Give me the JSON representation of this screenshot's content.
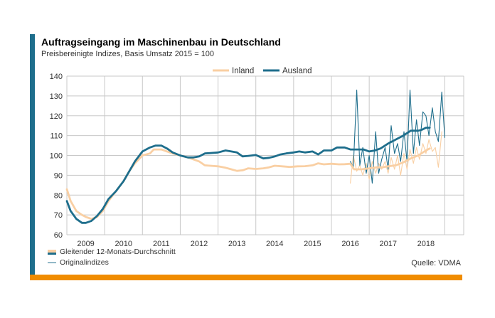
{
  "title": "Auftragseingang im Maschinenbau in Deutschland",
  "subtitle": "Preisbereinigte Indizes, Basis Umsatz 2015 = 100",
  "source": "Quelle: VDMA",
  "legend_bottom": {
    "moving_avg": "Gleitender 12-Monats-Durchschnitt",
    "original": "Originalindizes"
  },
  "colors": {
    "accent": "#1e6e8c",
    "orange": "#f08c00",
    "inland": "#f9cfa3",
    "ausland": "#1e6e8c",
    "grid": "#c8c8c8"
  },
  "chart_data": {
    "type": "line",
    "title": "Auftragseingang im Maschinenbau in Deutschland",
    "subtitle": "Preisbereinigte Indizes, Basis Umsatz 2015 = 100",
    "xlabel": "",
    "ylabel": "",
    "ylim": [
      60,
      140
    ],
    "yticks": [
      60,
      70,
      80,
      90,
      100,
      110,
      120,
      130,
      140
    ],
    "xlim": [
      2008.5,
      2019.0
    ],
    "x_tick_labels": [
      "2009",
      "2010",
      "2011",
      "2012",
      "2013",
      "2014",
      "2015",
      "2016",
      "2017",
      "2018"
    ],
    "grid": true,
    "legend_position": "top",
    "series": [
      {
        "name": "Inland",
        "kind": "moving_average",
        "color": "#f9cfa3",
        "points": [
          [
            2008.5,
            83
          ],
          [
            2008.6,
            77
          ],
          [
            2008.75,
            72
          ],
          [
            2008.9,
            70
          ],
          [
            2009.0,
            69
          ],
          [
            2009.15,
            68
          ],
          [
            2009.3,
            69
          ],
          [
            2009.45,
            72
          ],
          [
            2009.6,
            77
          ],
          [
            2009.8,
            82
          ],
          [
            2010.0,
            87
          ],
          [
            2010.15,
            92
          ],
          [
            2010.3,
            96
          ],
          [
            2010.5,
            100
          ],
          [
            2010.7,
            101
          ],
          [
            2010.8,
            103
          ],
          [
            2011.0,
            103
          ],
          [
            2011.15,
            102
          ],
          [
            2011.3,
            101
          ],
          [
            2011.5,
            100
          ],
          [
            2011.7,
            99
          ],
          [
            2011.85,
            98
          ],
          [
            2012.0,
            97
          ],
          [
            2012.15,
            95
          ],
          [
            2012.3,
            94.8
          ],
          [
            2012.5,
            94.5
          ],
          [
            2012.7,
            93.8
          ],
          [
            2012.85,
            93
          ],
          [
            2013.0,
            92.2
          ],
          [
            2013.15,
            92.5
          ],
          [
            2013.3,
            93.5
          ],
          [
            2013.5,
            93.2
          ],
          [
            2013.7,
            93.5
          ],
          [
            2013.85,
            94
          ],
          [
            2014.0,
            94.8
          ],
          [
            2014.2,
            94.5
          ],
          [
            2014.4,
            94.2
          ],
          [
            2014.6,
            94.5
          ],
          [
            2014.8,
            94.6
          ],
          [
            2015.0,
            95
          ],
          [
            2015.15,
            96
          ],
          [
            2015.3,
            95.5
          ],
          [
            2015.5,
            95.8
          ],
          [
            2015.7,
            95.5
          ],
          [
            2015.85,
            95.6
          ],
          [
            2016.0,
            95.8
          ],
          [
            2016.1,
            93
          ],
          [
            2016.3,
            93
          ],
          [
            2016.5,
            93.5
          ],
          [
            2016.7,
            94
          ],
          [
            2016.85,
            94
          ],
          [
            2017.0,
            94.5
          ],
          [
            2017.2,
            95
          ],
          [
            2017.4,
            96.5
          ],
          [
            2017.6,
            98.5
          ],
          [
            2017.8,
            100
          ],
          [
            2018.0,
            102.5
          ],
          [
            2018.1,
            103.5
          ]
        ]
      },
      {
        "name": "Ausland",
        "kind": "moving_average",
        "color": "#1e6e8c",
        "points": [
          [
            2008.5,
            77
          ],
          [
            2008.6,
            72
          ],
          [
            2008.75,
            68
          ],
          [
            2008.9,
            66
          ],
          [
            2009.0,
            66
          ],
          [
            2009.15,
            67
          ],
          [
            2009.3,
            69.5
          ],
          [
            2009.45,
            73
          ],
          [
            2009.6,
            78
          ],
          [
            2009.8,
            82
          ],
          [
            2010.0,
            87
          ],
          [
            2010.15,
            92
          ],
          [
            2010.3,
            97
          ],
          [
            2010.5,
            102
          ],
          [
            2010.7,
            104
          ],
          [
            2010.85,
            105
          ],
          [
            2011.0,
            105
          ],
          [
            2011.15,
            103.5
          ],
          [
            2011.3,
            101.5
          ],
          [
            2011.5,
            100
          ],
          [
            2011.7,
            99
          ],
          [
            2011.85,
            99
          ],
          [
            2012.0,
            99.5
          ],
          [
            2012.15,
            101
          ],
          [
            2012.3,
            101.2
          ],
          [
            2012.5,
            101.5
          ],
          [
            2012.7,
            102.5
          ],
          [
            2012.85,
            102
          ],
          [
            2013.0,
            101.5
          ],
          [
            2013.15,
            99.5
          ],
          [
            2013.3,
            99.8
          ],
          [
            2013.5,
            100.2
          ],
          [
            2013.7,
            98.5
          ],
          [
            2013.85,
            98.8
          ],
          [
            2014.0,
            99.5
          ],
          [
            2014.15,
            100.5
          ],
          [
            2014.3,
            101
          ],
          [
            2014.5,
            101.5
          ],
          [
            2014.65,
            102
          ],
          [
            2014.8,
            101.5
          ],
          [
            2015.0,
            102
          ],
          [
            2015.15,
            100.5
          ],
          [
            2015.3,
            102.5
          ],
          [
            2015.5,
            102.5
          ],
          [
            2015.65,
            104
          ],
          [
            2015.85,
            104
          ],
          [
            2016.0,
            103
          ],
          [
            2016.2,
            103
          ],
          [
            2016.35,
            103
          ],
          [
            2016.5,
            102
          ],
          [
            2016.65,
            102.5
          ],
          [
            2016.8,
            103.5
          ],
          [
            2017.0,
            106
          ],
          [
            2017.2,
            108
          ],
          [
            2017.4,
            110
          ],
          [
            2017.6,
            112.5
          ],
          [
            2017.8,
            112.5
          ],
          [
            2017.9,
            113
          ],
          [
            2018.0,
            114
          ],
          [
            2018.1,
            114
          ]
        ]
      },
      {
        "name": "Inland",
        "kind": "original",
        "color": "#f9cfa3",
        "points": [
          [
            2016.0,
            86
          ],
          [
            2016.08,
            100
          ],
          [
            2016.17,
            92
          ],
          [
            2016.25,
            95
          ],
          [
            2016.33,
            90
          ],
          [
            2016.42,
            96
          ],
          [
            2016.5,
            88
          ],
          [
            2016.58,
            97
          ],
          [
            2016.67,
            91
          ],
          [
            2016.75,
            96
          ],
          [
            2016.83,
            93
          ],
          [
            2016.92,
            97
          ],
          [
            2017.0,
            91
          ],
          [
            2017.08,
            99
          ],
          [
            2017.17,
            93
          ],
          [
            2017.25,
            100
          ],
          [
            2017.33,
            90
          ],
          [
            2017.42,
            101
          ],
          [
            2017.5,
            93
          ],
          [
            2017.58,
            103
          ],
          [
            2017.67,
            96
          ],
          [
            2017.75,
            104
          ],
          [
            2017.83,
            98
          ],
          [
            2017.92,
            106
          ],
          [
            2018.0,
            101
          ],
          [
            2018.08,
            108
          ],
          [
            2018.17,
            102
          ],
          [
            2018.25,
            104
          ],
          [
            2018.33,
            94
          ],
          [
            2018.42,
            112
          ]
        ]
      },
      {
        "name": "Ausland",
        "kind": "original",
        "color": "#1e6e8c",
        "points": [
          [
            2016.0,
            97
          ],
          [
            2016.08,
            94
          ],
          [
            2016.17,
            133
          ],
          [
            2016.25,
            95
          ],
          [
            2016.33,
            104
          ],
          [
            2016.42,
            91
          ],
          [
            2016.5,
            100
          ],
          [
            2016.58,
            86
          ],
          [
            2016.67,
            112
          ],
          [
            2016.75,
            91
          ],
          [
            2016.83,
            98
          ],
          [
            2016.92,
            104
          ],
          [
            2017.0,
            93
          ],
          [
            2017.08,
            115
          ],
          [
            2017.17,
            101
          ],
          [
            2017.25,
            106
          ],
          [
            2017.33,
            97
          ],
          [
            2017.42,
            112
          ],
          [
            2017.5,
            97
          ],
          [
            2017.58,
            133
          ],
          [
            2017.67,
            101
          ],
          [
            2017.75,
            118
          ],
          [
            2017.83,
            105
          ],
          [
            2017.92,
            122
          ],
          [
            2018.0,
            120
          ],
          [
            2018.08,
            110
          ],
          [
            2018.17,
            124
          ],
          [
            2018.25,
            112
          ],
          [
            2018.33,
            107
          ],
          [
            2018.42,
            132
          ],
          [
            2018.5,
            109
          ]
        ]
      }
    ]
  }
}
